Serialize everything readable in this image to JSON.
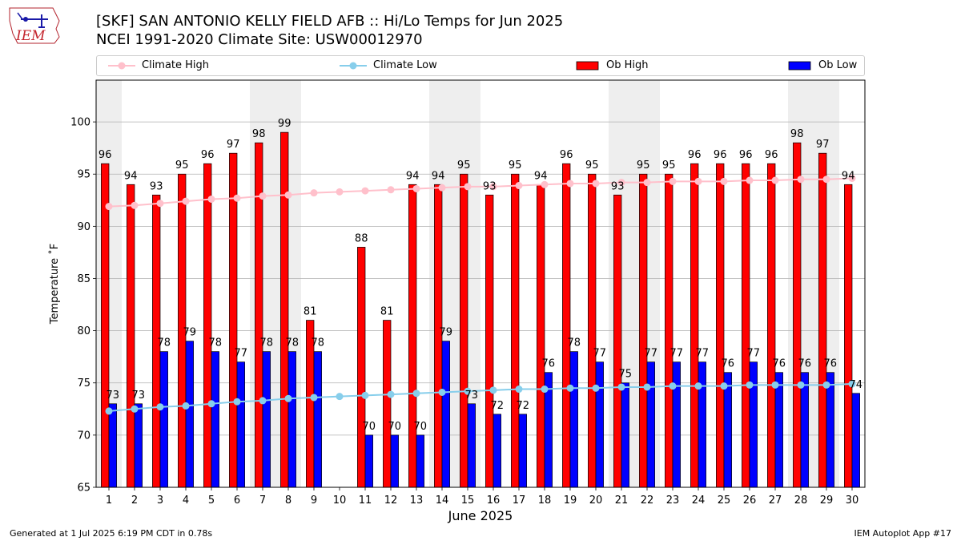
{
  "header": {
    "title_line1": "[SKF] SAN ANTONIO KELLY FIELD AFB :: Hi/Lo Temps for Jun 2025",
    "title_line2": "NCEI 1991-2020 Climate Site: USW00012970",
    "logo_text": "IEM"
  },
  "legend": {
    "climate_high": "Climate High",
    "climate_low": "Climate Low",
    "ob_high": "Ob High",
    "ob_low": "Ob Low"
  },
  "footer": {
    "left": "Generated at 1 Jul 2025 6:19 PM CDT in 0.78s",
    "right": "IEM Autoplot App #17"
  },
  "colors": {
    "ob_high": "#ff0000",
    "ob_low": "#0000ff",
    "climate_high": "#ffc0cb",
    "climate_low": "#87ceeb",
    "weekend_shade": "#eeeeee",
    "grid": "#b0b0b0"
  },
  "chart_data": {
    "type": "bar",
    "xlabel": "June 2025",
    "ylabel": "Temperature ˚F",
    "ylim": [
      65,
      104
    ],
    "yticks": [
      65,
      70,
      75,
      80,
      85,
      90,
      95,
      100
    ],
    "grid": "horizontal",
    "legend_position": "top",
    "categories": [
      1,
      2,
      3,
      4,
      5,
      6,
      7,
      8,
      9,
      10,
      11,
      12,
      13,
      14,
      15,
      16,
      17,
      18,
      19,
      20,
      21,
      22,
      23,
      24,
      25,
      26,
      27,
      28,
      29,
      30
    ],
    "shaded_days": [
      1,
      7,
      8,
      14,
      15,
      21,
      22,
      28,
      29
    ],
    "series": [
      {
        "name": "Ob High",
        "kind": "bar",
        "values": [
          96,
          94,
          93,
          95,
          96,
          97,
          98,
          99,
          81,
          null,
          88,
          81,
          94,
          94,
          95,
          93,
          95,
          94,
          96,
          95,
          93,
          95,
          95,
          96,
          96,
          96,
          96,
          98,
          97,
          94
        ]
      },
      {
        "name": "Ob Low",
        "kind": "bar",
        "values": [
          73,
          73,
          78,
          79,
          78,
          77,
          78,
          78,
          78,
          null,
          70,
          70,
          70,
          79,
          73,
          72,
          72,
          76,
          78,
          77,
          75,
          77,
          77,
          77,
          76,
          77,
          76,
          76,
          76,
          74
        ]
      },
      {
        "name": "Climate High",
        "kind": "line",
        "values": [
          91.9,
          92.0,
          92.2,
          92.4,
          92.6,
          92.7,
          92.9,
          93.0,
          93.2,
          93.3,
          93.4,
          93.5,
          93.6,
          93.7,
          93.8,
          93.8,
          93.9,
          94.0,
          94.1,
          94.1,
          94.2,
          94.2,
          94.3,
          94.3,
          94.3,
          94.4,
          94.4,
          94.5,
          94.5,
          94.6
        ]
      },
      {
        "name": "Climate Low",
        "kind": "line",
        "values": [
          72.3,
          72.5,
          72.7,
          72.8,
          73.0,
          73.2,
          73.3,
          73.5,
          73.6,
          73.7,
          73.8,
          73.9,
          74.0,
          74.1,
          74.2,
          74.3,
          74.4,
          74.4,
          74.5,
          74.5,
          74.6,
          74.6,
          74.7,
          74.7,
          74.7,
          74.8,
          74.8,
          74.8,
          74.8,
          74.9
        ]
      }
    ]
  }
}
